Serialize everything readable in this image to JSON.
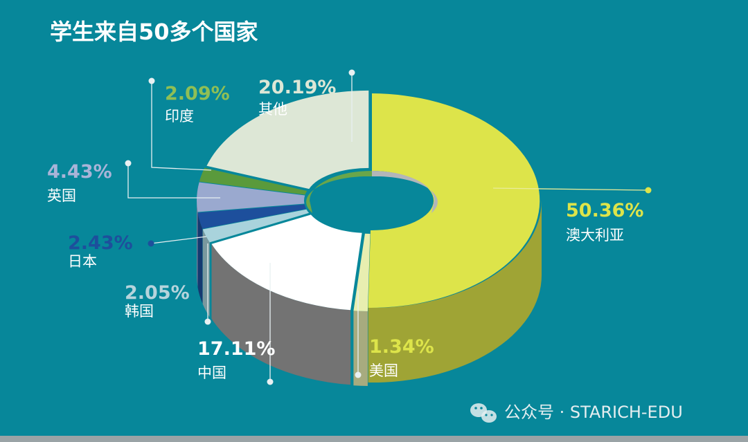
{
  "chart_data": {
    "type": "pie",
    "title": "学生来自50多个国家",
    "slices": [
      {
        "name": "澳大利亚",
        "value": 50.36,
        "label": "50.36%",
        "color": "#dde44a",
        "label_color": "#dde44a"
      },
      {
        "name": "美国",
        "value": 1.34,
        "label": "1.34%",
        "color": "#e8eeb0",
        "label_color": "#dde44a"
      },
      {
        "name": "中国",
        "value": 17.11,
        "label": "17.11%",
        "color": "#ffffff",
        "label_color": "#ffffff"
      },
      {
        "name": "韩国",
        "value": 2.05,
        "label": "2.05%",
        "color": "#a9d3dc",
        "label_color": "#b6d4dc"
      },
      {
        "name": "日本",
        "value": 2.43,
        "label": "2.43%",
        "color": "#1d4f9c",
        "label_color": "#1d4f9c"
      },
      {
        "name": "英国",
        "value": 4.43,
        "label": "4.43%",
        "color": "#9aa9cf",
        "label_color": "#a9b4d8"
      },
      {
        "name": "印度",
        "value": 2.09,
        "label": "2.09%",
        "color": "#5a9a3c",
        "label_color": "#8fbf55"
      },
      {
        "name": "其他",
        "value": 20.19,
        "label": "20.19%",
        "color": "#dde7d6",
        "label_color": "#dde7d6"
      }
    ]
  },
  "watermark": {
    "text": "公众号 · STARICH-EDU",
    "icon": "wechat-icon"
  }
}
